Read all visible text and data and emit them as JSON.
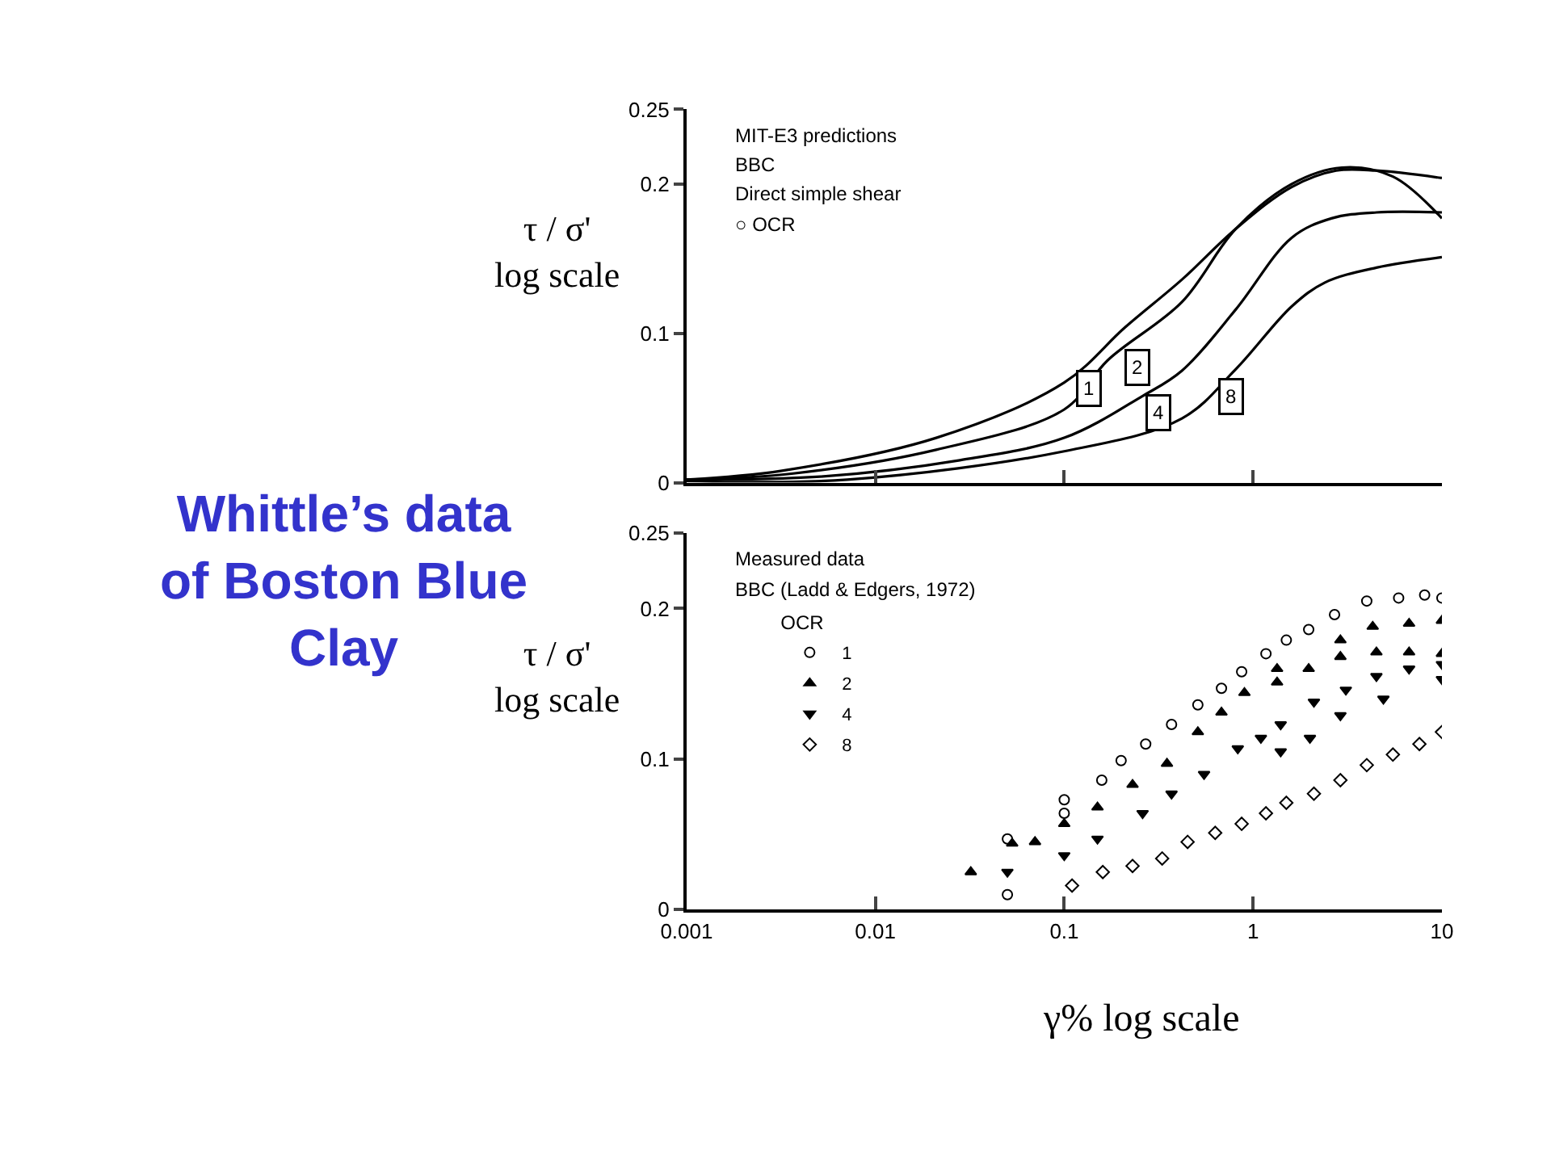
{
  "chart_data": [
    {
      "type": "line",
      "title": "Whittle’s data of Boston Blue Clay",
      "ylabel": "τ / σ'\nlog scale",
      "log": "x",
      "line_style": "solid",
      "legend": false,
      "tick_labels": "y",
      "xlim": [
        0.001,
        10
      ],
      "xticks": [
        {
          "value": 0.001,
          "label": null
        },
        {
          "value": 0.01,
          "label": null
        },
        {
          "value": 0.1,
          "label": null
        },
        {
          "value": 1,
          "label": null
        },
        {
          "value": 10,
          "label": null
        }
      ],
      "ylim": [
        0,
        0.25
      ],
      "yticks": [
        0,
        0.1,
        0.2,
        0.25
      ],
      "annotations": [
        "MIT-E3 predictions",
        "BBC",
        "Direct simple shear",
        "○ OCR",
        {
          "text": "1",
          "x": 0.115,
          "y": 0.076
        },
        {
          "text": "2",
          "x": 0.21,
          "y": 0.09
        },
        {
          "text": "4",
          "x": 0.27,
          "y": 0.059
        },
        {
          "text": "8",
          "x": 0.65,
          "y": 0.07
        }
      ],
      "series": [
        {
          "color": "#000000",
          "x": [
            0.001,
            0.0032,
            0.021,
            0.1,
            0.21,
            0.42,
            0.81,
            1.6,
            2.75,
            4.5,
            10
          ],
          "values": [
            0.002,
            0.008,
            0.03,
            0.067,
            0.104,
            0.136,
            0.17,
            0.198,
            0.209,
            0.209,
            0.204
          ]
        },
        {
          "color": "#000000",
          "x": [
            0.001,
            0.0036,
            0.021,
            0.1,
            0.17,
            0.42,
            0.81,
            1.6,
            2.95,
            5.5,
            10
          ],
          "values": [
            0.002,
            0.006,
            0.022,
            0.049,
            0.082,
            0.121,
            0.17,
            0.2,
            0.211,
            0.205,
            0.177
          ]
        },
        {
          "color": "#000000",
          "x": [
            0.001,
            0.0051,
            0.028,
            0.1,
            0.26,
            0.42,
            0.81,
            1.6,
            2.6,
            4.5,
            10
          ],
          "values": [
            0.002,
            0.004,
            0.015,
            0.03,
            0.058,
            0.075,
            0.116,
            0.164,
            0.177,
            0.181,
            0.181
          ]
        },
        {
          "color": "#000000",
          "x": [
            0.001,
            0.0071,
            0.1,
            0.42,
            0.81,
            1.6,
            2.4,
            4.5,
            10
          ],
          "values": [
            0.001,
            0.002,
            0.021,
            0.043,
            0.076,
            0.118,
            0.134,
            0.144,
            0.151
          ]
        }
      ]
    },
    {
      "type": "scatter",
      "ylabel": "τ / σ'\nlog scale",
      "xlabel": "γ% log scale",
      "log": "x",
      "legend": "top left",
      "legend_title": "OCR",
      "xlim": [
        0.001,
        10
      ],
      "xticks": [
        0.001,
        0.01,
        0.1,
        1,
        10
      ],
      "ylim": [
        0,
        0.25
      ],
      "yticks": [
        0,
        0.1,
        0.2,
        0.25
      ],
      "annotations": [
        "Measured data",
        "BBC (Ladd & Edgers, 1972)"
      ],
      "series": [
        {
          "name": "1",
          "color": "#000000",
          "marker": "circle",
          "x": [
            0.05,
            0.05,
            0.1,
            0.1,
            0.158,
            0.2,
            0.27,
            0.37,
            0.51,
            0.68,
            0.87,
            1.17,
            1.5,
            1.97,
            2.7,
            4,
            5.9,
            8.1,
            10
          ],
          "values": [
            0.01,
            0.047,
            0.073,
            0.064,
            0.086,
            0.099,
            0.11,
            0.123,
            0.136,
            0.147,
            0.158,
            0.17,
            0.179,
            0.186,
            0.196,
            0.205,
            0.207,
            0.209,
            0.207
          ]
        },
        {
          "name": "2",
          "color": "#000000",
          "marker": "triangle",
          "x": [
            0.032,
            0.053,
            0.07,
            0.1,
            0.15,
            0.23,
            0.35,
            0.51,
            0.68,
            0.9,
            1.34,
            1.97,
            2.9,
            4.5,
            6.7,
            10,
            1.34,
            2.9,
            4.3,
            6.7,
            10
          ],
          "values": [
            0.025,
            0.044,
            0.045,
            0.057,
            0.068,
            0.083,
            0.097,
            0.118,
            0.131,
            0.144,
            0.151,
            0.16,
            0.168,
            0.171,
            0.171,
            0.17,
            0.16,
            0.179,
            0.188,
            0.19,
            0.192
          ]
        },
        {
          "name": "4",
          "color": "#000000",
          "marker": "triangle-down",
          "x": [
            0.05,
            0.1,
            0.15,
            0.26,
            0.37,
            0.55,
            0.83,
            1.1,
            1.4,
            2.1,
            3.1,
            4.5,
            6.7,
            10,
            1.4,
            2,
            2.9,
            4.9,
            10
          ],
          "values": [
            0.025,
            0.036,
            0.047,
            0.064,
            0.077,
            0.09,
            0.107,
            0.114,
            0.123,
            0.138,
            0.146,
            0.155,
            0.16,
            0.163,
            0.105,
            0.114,
            0.129,
            0.14,
            0.153
          ]
        },
        {
          "name": "8",
          "color": "#000000",
          "marker": "diamond",
          "x": [
            0.11,
            0.16,
            0.23,
            0.33,
            0.45,
            0.63,
            0.87,
            1.17,
            1.5,
            2.1,
            2.9,
            4,
            5.5,
            7.6,
            10
          ],
          "values": [
            0.016,
            0.025,
            0.029,
            0.034,
            0.045,
            0.051,
            0.057,
            0.064,
            0.071,
            0.077,
            0.086,
            0.096,
            0.103,
            0.11,
            0.118
          ]
        }
      ]
    }
  ]
}
